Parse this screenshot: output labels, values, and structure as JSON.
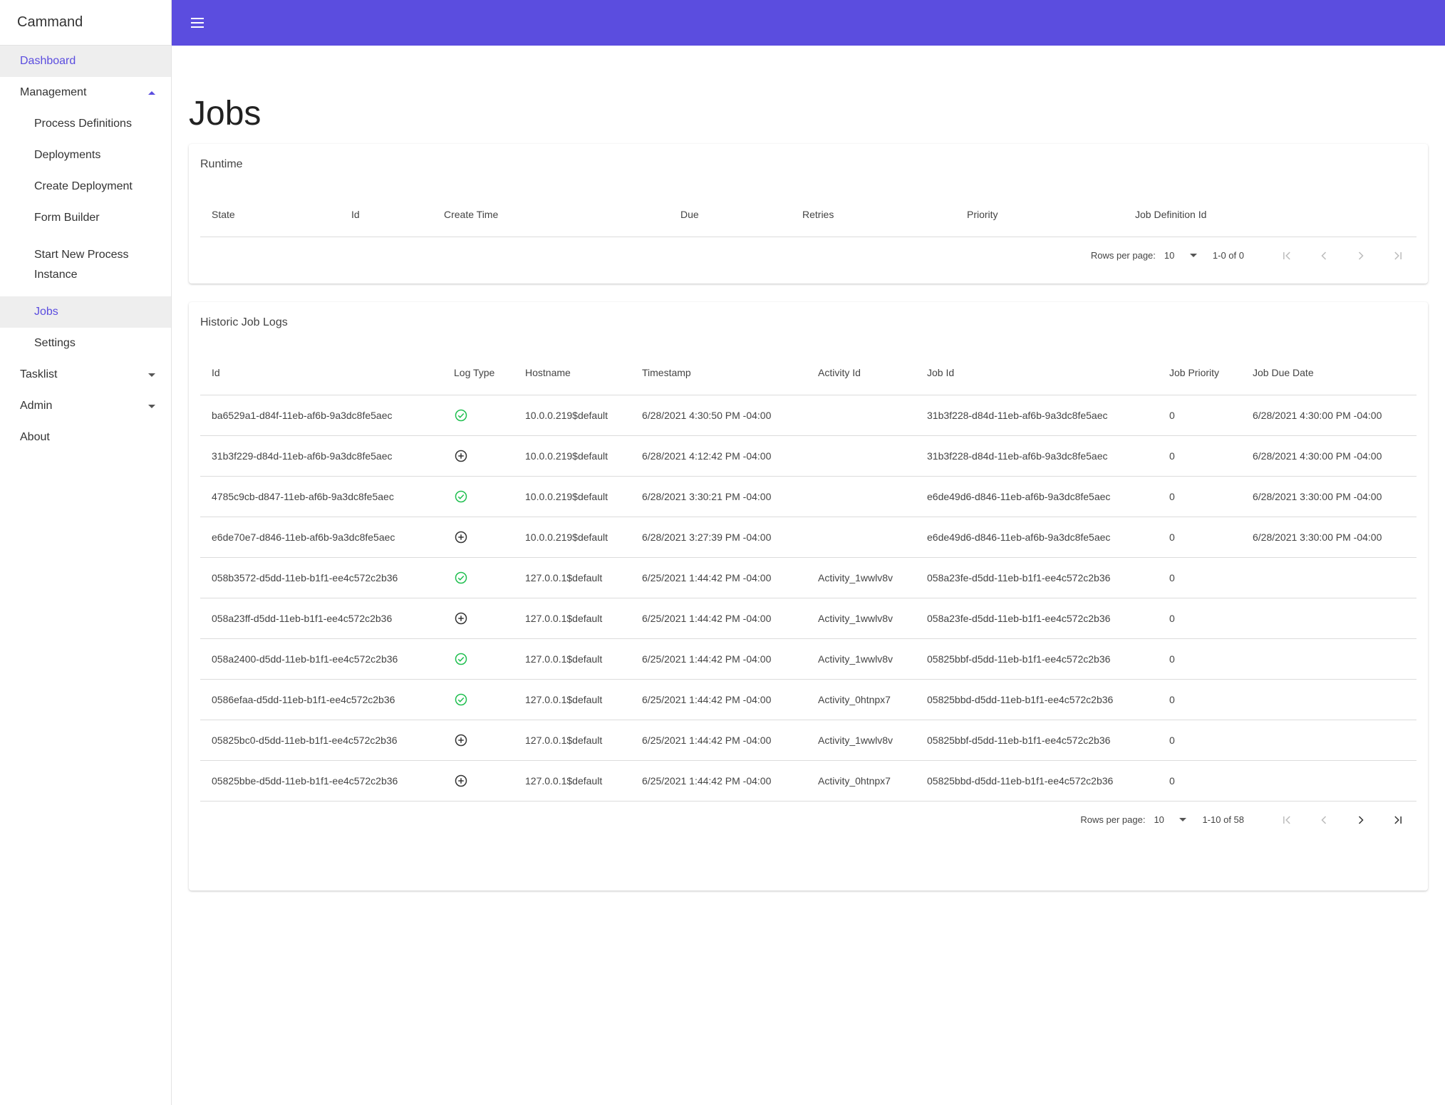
{
  "app": {
    "brand": "Cammand"
  },
  "sidebar": {
    "items": [
      {
        "label": "Dashboard"
      },
      {
        "label": "Management"
      },
      {
        "label": "Process Definitions"
      },
      {
        "label": "Deployments"
      },
      {
        "label": "Create Deployment"
      },
      {
        "label": "Form Builder"
      },
      {
        "label": "Start New Process Instance"
      },
      {
        "label": "Jobs"
      },
      {
        "label": "Settings"
      },
      {
        "label": "Tasklist"
      },
      {
        "label": "Admin"
      },
      {
        "label": "About"
      }
    ]
  },
  "page": {
    "title": "Jobs"
  },
  "runtime": {
    "title": "Runtime",
    "columns": [
      "State",
      "Id",
      "Create Time",
      "Due",
      "Retries",
      "Priority",
      "Job Definition Id"
    ],
    "pager": {
      "rows_label": "Rows per page:",
      "rows_value": "10",
      "range": "1-0 of 0"
    }
  },
  "history": {
    "title": "Historic Job Logs",
    "columns": [
      "Id",
      "Log Type",
      "Hostname",
      "Timestamp",
      "Activity Id",
      "Job Id",
      "Job Priority",
      "Job Due Date"
    ],
    "rows": [
      {
        "id": "ba6529a1-d84f-11eb-af6b-9a3dc8fe5aec",
        "log_type": "success-icon",
        "hostname": "10.0.0.219$default",
        "timestamp": "6/28/2021 4:30:50 PM -04:00",
        "activity_id": "",
        "job_id": "31b3f228-d84d-11eb-af6b-9a3dc8fe5aec",
        "job_priority": "0",
        "job_due_date": "6/28/2021 4:30:00 PM -04:00"
      },
      {
        "id": "31b3f229-d84d-11eb-af6b-9a3dc8fe5aec",
        "log_type": "created-icon",
        "hostname": "10.0.0.219$default",
        "timestamp": "6/28/2021 4:12:42 PM -04:00",
        "activity_id": "",
        "job_id": "31b3f228-d84d-11eb-af6b-9a3dc8fe5aec",
        "job_priority": "0",
        "job_due_date": "6/28/2021 4:30:00 PM -04:00"
      },
      {
        "id": "4785c9cb-d847-11eb-af6b-9a3dc8fe5aec",
        "log_type": "success-icon",
        "hostname": "10.0.0.219$default",
        "timestamp": "6/28/2021 3:30:21 PM -04:00",
        "activity_id": "",
        "job_id": "e6de49d6-d846-11eb-af6b-9a3dc8fe5aec",
        "job_priority": "0",
        "job_due_date": "6/28/2021 3:30:00 PM -04:00"
      },
      {
        "id": "e6de70e7-d846-11eb-af6b-9a3dc8fe5aec",
        "log_type": "created-icon",
        "hostname": "10.0.0.219$default",
        "timestamp": "6/28/2021 3:27:39 PM -04:00",
        "activity_id": "",
        "job_id": "e6de49d6-d846-11eb-af6b-9a3dc8fe5aec",
        "job_priority": "0",
        "job_due_date": "6/28/2021 3:30:00 PM -04:00"
      },
      {
        "id": "058b3572-d5dd-11eb-b1f1-ee4c572c2b36",
        "log_type": "success-icon",
        "hostname": "127.0.0.1$default",
        "timestamp": "6/25/2021 1:44:42 PM -04:00",
        "activity_id": "Activity_1wwlv8v",
        "job_id": "058a23fe-d5dd-11eb-b1f1-ee4c572c2b36",
        "job_priority": "0",
        "job_due_date": ""
      },
      {
        "id": "058a23ff-d5dd-11eb-b1f1-ee4c572c2b36",
        "log_type": "created-icon",
        "hostname": "127.0.0.1$default",
        "timestamp": "6/25/2021 1:44:42 PM -04:00",
        "activity_id": "Activity_1wwlv8v",
        "job_id": "058a23fe-d5dd-11eb-b1f1-ee4c572c2b36",
        "job_priority": "0",
        "job_due_date": ""
      },
      {
        "id": "058a2400-d5dd-11eb-b1f1-ee4c572c2b36",
        "log_type": "success-icon",
        "hostname": "127.0.0.1$default",
        "timestamp": "6/25/2021 1:44:42 PM -04:00",
        "activity_id": "Activity_1wwlv8v",
        "job_id": "05825bbf-d5dd-11eb-b1f1-ee4c572c2b36",
        "job_priority": "0",
        "job_due_date": ""
      },
      {
        "id": "0586efaa-d5dd-11eb-b1f1-ee4c572c2b36",
        "log_type": "success-icon",
        "hostname": "127.0.0.1$default",
        "timestamp": "6/25/2021 1:44:42 PM -04:00",
        "activity_id": "Activity_0htnpx7",
        "job_id": "05825bbd-d5dd-11eb-b1f1-ee4c572c2b36",
        "job_priority": "0",
        "job_due_date": ""
      },
      {
        "id": "05825bc0-d5dd-11eb-b1f1-ee4c572c2b36",
        "log_type": "created-icon",
        "hostname": "127.0.0.1$default",
        "timestamp": "6/25/2021 1:44:42 PM -04:00",
        "activity_id": "Activity_1wwlv8v",
        "job_id": "05825bbf-d5dd-11eb-b1f1-ee4c572c2b36",
        "job_priority": "0",
        "job_due_date": ""
      },
      {
        "id": "05825bbe-d5dd-11eb-b1f1-ee4c572c2b36",
        "log_type": "created-icon",
        "hostname": "127.0.0.1$default",
        "timestamp": "6/25/2021 1:44:42 PM -04:00",
        "activity_id": "Activity_0htnpx7",
        "job_id": "05825bbd-d5dd-11eb-b1f1-ee4c572c2b36",
        "job_priority": "0",
        "job_due_date": ""
      }
    ],
    "pager": {
      "rows_label": "Rows per page:",
      "rows_value": "10",
      "range": "1-10 of 58"
    }
  },
  "colors": {
    "accent": "#5b4ddf",
    "success": "#1fbf4f",
    "active_bg": "#eeeeee"
  }
}
